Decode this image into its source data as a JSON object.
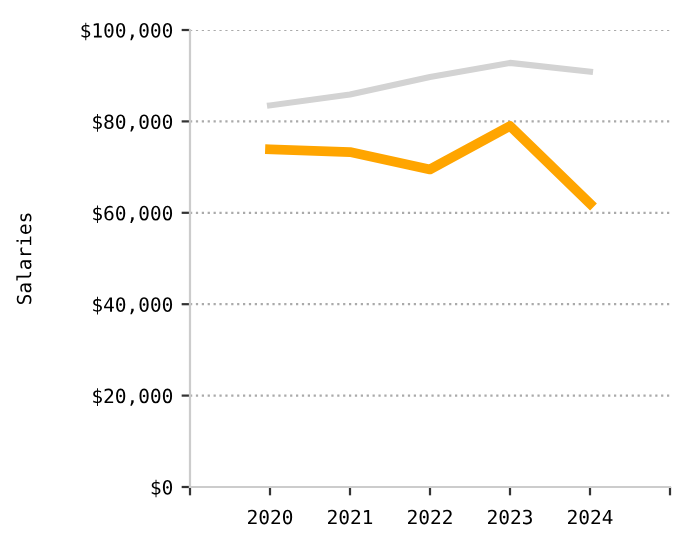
{
  "chart_data": {
    "type": "line",
    "ylabel": "Salaries",
    "x": [
      2020,
      2021,
      2022,
      2023,
      2024
    ],
    "series": [
      {
        "color": "#d3d3d3",
        "values": [
          83500,
          85900,
          89700,
          92800,
          90900
        ]
      },
      {
        "color": "#ffa500",
        "values": [
          73900,
          73300,
          69500,
          79000,
          62000
        ]
      }
    ],
    "xlim": [
      2019,
      2025
    ],
    "xticks": [
      {
        "value": 2019,
        "label": null
      },
      2020,
      2021,
      2022,
      2023,
      2024,
      {
        "value": 2025,
        "label": null
      }
    ],
    "ylim": [
      0,
      100000
    ],
    "yticks": [
      {
        "value": 0,
        "label": "$0"
      },
      {
        "value": 20000,
        "label": "$20,000"
      },
      {
        "value": 40000,
        "label": "$40,000"
      },
      {
        "value": 60000,
        "label": "$60,000"
      },
      {
        "value": 80000,
        "label": "$80,000"
      },
      {
        "value": 100000,
        "label": "$100,000"
      }
    ],
    "grid": "y",
    "marker": "none",
    "line_style": "solid"
  }
}
